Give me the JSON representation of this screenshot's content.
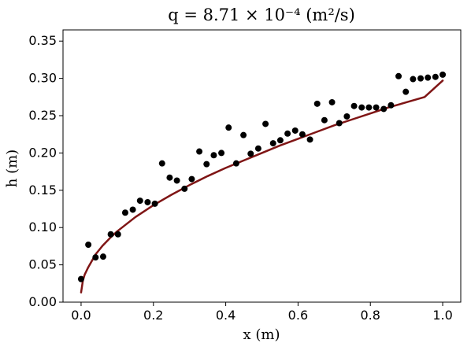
{
  "chart_data": {
    "type": "scatter",
    "title": "q = 8.71 × 10⁻⁴ (m²/s)",
    "xlabel": "x (m)",
    "ylabel": "h (m)",
    "xlim": [
      -0.05,
      1.05
    ],
    "ylim": [
      0.0,
      0.365
    ],
    "x_ticks": [
      "0.0",
      "0.2",
      "0.4",
      "0.6",
      "0.8",
      "1.0"
    ],
    "y_ticks": [
      "0.00",
      "0.05",
      "0.10",
      "0.15",
      "0.20",
      "0.25",
      "0.30",
      "0.35"
    ],
    "grid": false,
    "legend": "none",
    "series": [
      {
        "kind": "scatter",
        "color": "#000000",
        "x": [
          0.0,
          0.02,
          0.04,
          0.061,
          0.082,
          0.102,
          0.122,
          0.143,
          0.163,
          0.184,
          0.204,
          0.224,
          0.245,
          0.265,
          0.286,
          0.306,
          0.327,
          0.347,
          0.367,
          0.388,
          0.408,
          0.429,
          0.449,
          0.469,
          0.49,
          0.51,
          0.531,
          0.551,
          0.571,
          0.592,
          0.612,
          0.633,
          0.653,
          0.673,
          0.694,
          0.714,
          0.735,
          0.755,
          0.776,
          0.796,
          0.816,
          0.837,
          0.857,
          0.878,
          0.898,
          0.918,
          0.939,
          0.959,
          0.98,
          1.0
        ],
        "y": [
          0.031,
          0.077,
          0.06,
          0.061,
          0.091,
          0.091,
          0.12,
          0.124,
          0.136,
          0.134,
          0.132,
          0.186,
          0.167,
          0.163,
          0.152,
          0.165,
          0.202,
          0.185,
          0.197,
          0.2,
          0.234,
          0.186,
          0.224,
          0.199,
          0.206,
          0.239,
          0.213,
          0.217,
          0.226,
          0.23,
          0.225,
          0.218,
          0.266,
          0.244,
          0.268,
          0.24,
          0.249,
          0.263,
          0.261,
          0.261,
          0.261,
          0.259,
          0.264,
          0.303,
          0.282,
          0.299,
          0.3,
          0.301,
          0.302,
          0.305
        ]
      },
      {
        "kind": "line",
        "color": "#7f1515",
        "x": [
          0.0,
          0.005,
          0.01,
          0.02,
          0.04,
          0.06,
          0.08,
          0.1,
          0.15,
          0.2,
          0.25,
          0.3,
          0.35,
          0.4,
          0.45,
          0.5,
          0.55,
          0.6,
          0.65,
          0.7,
          0.75,
          0.8,
          0.85,
          0.9,
          0.95,
          1.0
        ],
        "y": [
          0.013,
          0.029,
          0.037,
          0.047,
          0.064,
          0.076,
          0.086,
          0.095,
          0.114,
          0.13,
          0.144,
          0.157,
          0.169,
          0.18,
          0.19,
          0.2,
          0.21,
          0.219,
          0.228,
          0.237,
          0.245,
          0.253,
          0.261,
          0.268,
          0.275,
          0.297
        ]
      }
    ]
  }
}
